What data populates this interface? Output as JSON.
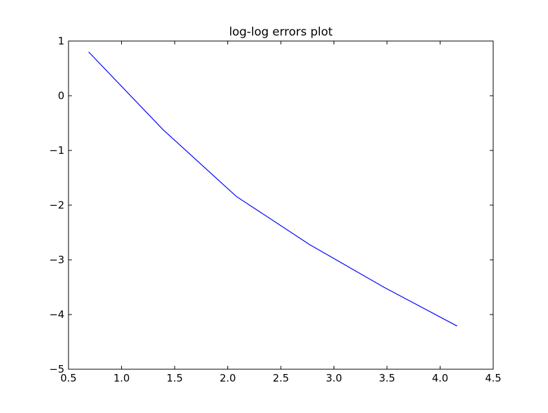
{
  "chart_data": {
    "type": "line",
    "title": "log-log errors plot",
    "xlabel": "",
    "ylabel": "",
    "xlim": [
      0.5,
      4.5
    ],
    "ylim": [
      -5,
      1
    ],
    "x_ticks": [
      0.5,
      1.0,
      1.5,
      2.0,
      2.5,
      3.0,
      3.5,
      4.0,
      4.5
    ],
    "x_tick_labels": [
      "0.5",
      "1.0",
      "1.5",
      "2.0",
      "2.5",
      "3.0",
      "3.5",
      "4.0",
      "4.5"
    ],
    "y_ticks": [
      1,
      0,
      -1,
      -2,
      -3,
      -4,
      -5
    ],
    "y_tick_labels": [
      "1",
      "0",
      "−1",
      "−2",
      "−3",
      "−4",
      "−5"
    ],
    "grid": false,
    "legend": "none",
    "series": [
      {
        "color": "#0000ff",
        "x": [
          0.69,
          1.39,
          2.08,
          2.77,
          3.47,
          4.16
        ],
        "y": [
          0.8,
          -0.62,
          -1.84,
          -2.72,
          -3.5,
          -4.21
        ]
      }
    ]
  }
}
